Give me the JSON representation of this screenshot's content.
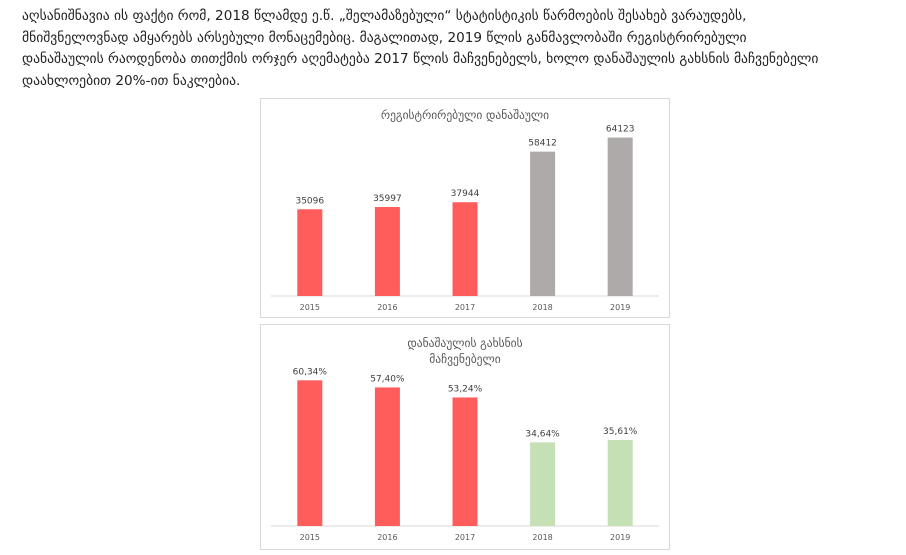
{
  "article": {
    "lines": [
      "აღსანიშნავია ის ფაქტი რომ, 2018 წლამდე ე.წ. „შელამაზებული“ სტატისტიკის წარმოების შესახებ ვარაუდებს,",
      "მნიშვნელოვნად ამყარებს არსებული მონაცემებიც. მაგალითად, 2019 წლის განმავლობაში რეგისტრირებული",
      "დანაშაულის რაოდენობა თითქმის ორჯერ აღემატება 2017 წლის მაჩვენებელს, ხოლო დანაშაულის გახსნის მაჩვენებელი",
      "დაახლოებით 20%-ით ნაკლებია."
    ]
  },
  "chart_data": [
    {
      "type": "bar",
      "title": "რეგისტრირებული დანაშაული",
      "categories": [
        "2015",
        "2016",
        "2017",
        "2018",
        "2019"
      ],
      "values": [
        35096,
        35997,
        37944,
        58412,
        64123
      ],
      "value_labels": [
        "35096",
        "35997",
        "37944",
        "58412",
        "64123"
      ],
      "bar_colors": [
        "#ff5c5c",
        "#ff5c5c",
        "#ff5c5c",
        "#aeaaaa",
        "#aeaaaa"
      ],
      "ylim": [
        0,
        70000
      ],
      "grid": false,
      "legend": "none"
    },
    {
      "type": "bar",
      "title": "დანაშაულის გახსნის მაჩვენებელი",
      "title_lines": [
        "დანაშაულის გახსნის",
        "მაჩვენებელი"
      ],
      "categories": [
        "2015",
        "2016",
        "2017",
        "2018",
        "2019"
      ],
      "values": [
        60.34,
        57.4,
        53.24,
        34.64,
        35.61
      ],
      "value_labels": [
        "60,34%",
        "57,40%",
        "53,24%",
        "34,64%",
        "35,61%"
      ],
      "bar_colors": [
        "#ff5c5c",
        "#ff5c5c",
        "#ff5c5c",
        "#c5e0b4",
        "#c5e0b4"
      ],
      "ylim": [
        0,
        70
      ],
      "grid": false,
      "legend": "none"
    }
  ]
}
